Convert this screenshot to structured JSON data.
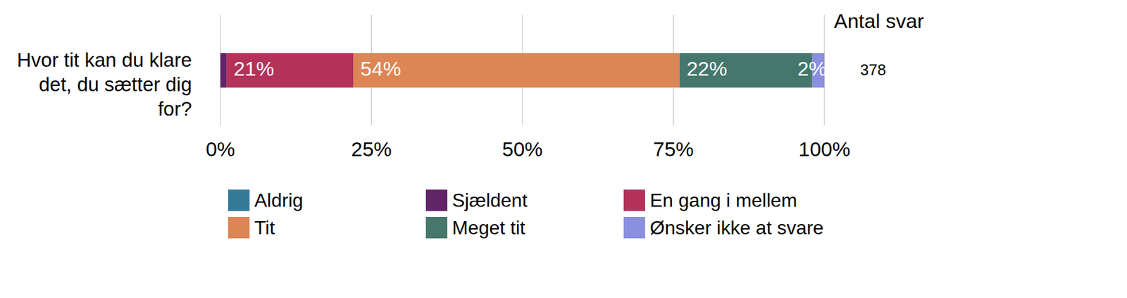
{
  "chart_data": {
    "type": "bar",
    "orientation": "horizontal",
    "stacked": true,
    "categories": [
      "Hvor tit kan du klare det, du sætter dig for?"
    ],
    "series": [
      {
        "name": "Aldrig",
        "color": "#337a99",
        "values": [
          0
        ],
        "value_labels": [
          null
        ]
      },
      {
        "name": "Sjældent",
        "color": "#612466",
        "values": [
          1
        ],
        "value_labels": [
          null
        ]
      },
      {
        "name": "En gang i mellem",
        "color": "#b3325a",
        "values": [
          21
        ],
        "value_labels": [
          "21%"
        ]
      },
      {
        "name": "Tit",
        "color": "#dc8655",
        "values": [
          54
        ],
        "value_labels": [
          "54%"
        ]
      },
      {
        "name": "Meget tit",
        "color": "#46776d",
        "values": [
          22
        ],
        "value_labels": [
          "22%"
        ]
      },
      {
        "name": "Ønsker ikke at svare",
        "color": "#8a8fdf",
        "values": [
          2
        ],
        "value_labels": [
          "2%"
        ]
      }
    ],
    "xlim": [
      0,
      100
    ],
    "xticks": [
      {
        "value": 0,
        "label": "0%"
      },
      {
        "value": 25,
        "label": "25%"
      },
      {
        "value": 50,
        "label": "50%"
      },
      {
        "value": 75,
        "label": "75%"
      },
      {
        "value": 100,
        "label": "100%"
      }
    ],
    "grid": true,
    "data_labels": true,
    "legend": "bottom",
    "count_label": "Antal svar",
    "counts": [
      378
    ]
  }
}
